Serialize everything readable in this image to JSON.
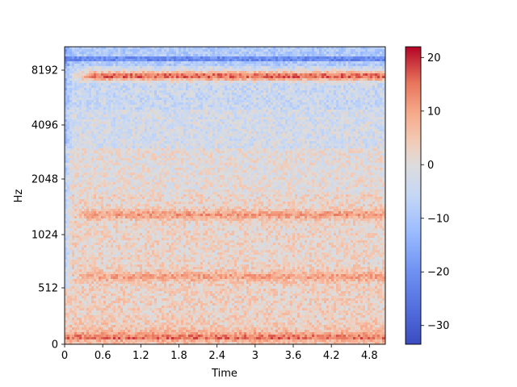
{
  "chart_data": {
    "type": "heatmap",
    "title": "",
    "xlabel": "Time",
    "ylabel": "Hz",
    "x_range": [
      0,
      5.05
    ],
    "x_ticks": [
      0,
      0.6,
      1.2,
      1.8,
      2.4,
      3,
      3.6,
      4.2,
      4.8
    ],
    "x_tick_labels": [
      "0",
      "0.6",
      "1.2",
      "1.8",
      "2.4",
      "3",
      "3.6",
      "4.2",
      "4.8"
    ],
    "y_scale": "log2 (with 0 at bottom)",
    "y_ticks": [
      0,
      512,
      1024,
      2048,
      4096,
      8192
    ],
    "y_tick_labels": [
      "0",
      "512",
      "1024",
      "2048",
      "4096",
      "8192"
    ],
    "colormap": "coolwarm",
    "colorbar": {
      "range": [
        -33.5,
        22
      ],
      "ticks": [
        20,
        10,
        0,
        -10,
        -20,
        -30
      ],
      "tick_labels": [
        "20",
        "10",
        "0",
        "−10",
        "−20",
        "−30"
      ]
    },
    "bands": [
      {
        "freq_hz": 7600,
        "level": 16,
        "start_s": 0.45
      },
      {
        "freq_hz": 1300,
        "level": 11,
        "start_s": 0.45
      },
      {
        "freq_hz": 590,
        "level": 10,
        "start_s": 0.45
      },
      {
        "freq_hz": 60,
        "level": 15,
        "start_s": 0.0
      }
    ],
    "grid": false
  }
}
